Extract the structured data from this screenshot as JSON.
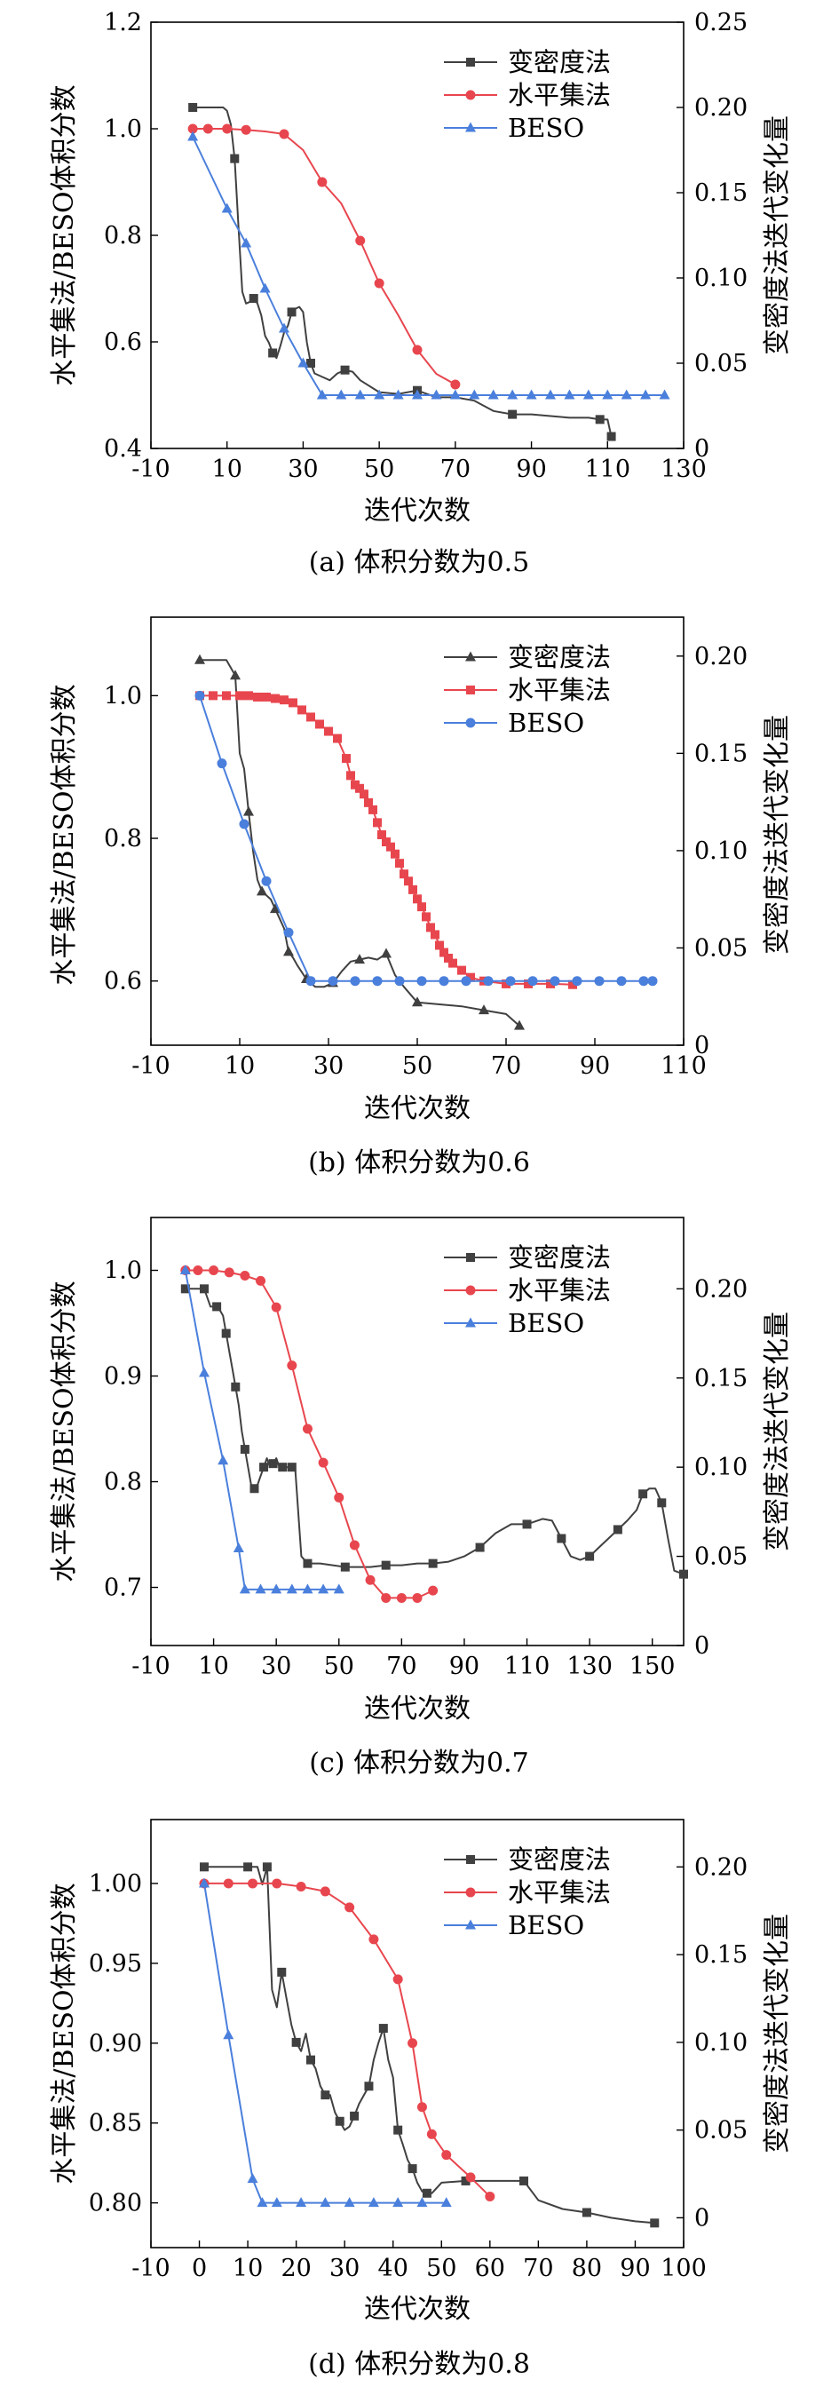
{
  "chart_data": [
    {
      "type": "line",
      "caption": "(a) 体积分数为0.5",
      "xlabel": "迭代次数",
      "ylabel": "水平集法/BESO体积分数",
      "y2label": "变密度法迭代变化量",
      "xlim": [
        -10,
        130
      ],
      "xticks": [
        -10,
        10,
        30,
        50,
        70,
        90,
        110,
        130
      ],
      "ylim": [
        0.4,
        1.2
      ],
      "yticks": [
        0.4,
        0.6,
        0.8,
        1.0,
        1.2
      ],
      "ytick_labels": [
        "0.4",
        "0.6",
        "0.8",
        "1.0",
        "1.2"
      ],
      "y2lim": [
        0,
        0.25
      ],
      "y2ticks": [
        0,
        0.05,
        0.1,
        0.15,
        0.2,
        0.25
      ],
      "y2tick_labels": [
        "0",
        "0.05",
        "0.10",
        "0.15",
        "0.20",
        "0.25"
      ],
      "legend": {
        "position": "top-right",
        "entries": [
          "变密度法",
          "水平集法",
          "BESO"
        ]
      },
      "series": [
        {
          "name": "变密度法",
          "axis": "right",
          "color": "#404040",
          "marker": "square",
          "marker_every": 5,
          "x": [
            1,
            5,
            9,
            10,
            11,
            12,
            13,
            14,
            15,
            16,
            17,
            18,
            19,
            20,
            21,
            22,
            23,
            24,
            25,
            26,
            27,
            28,
            29,
            30,
            31,
            32,
            33,
            35,
            37,
            39,
            41,
            43,
            45,
            50,
            55,
            60,
            65,
            70,
            75,
            80,
            85,
            90,
            95,
            100,
            105,
            108,
            110,
            111
          ],
          "y": [
            0.2,
            0.2,
            0.2,
            0.198,
            0.19,
            0.17,
            0.13,
            0.092,
            0.085,
            0.086,
            0.088,
            0.085,
            0.078,
            0.066,
            0.062,
            0.056,
            0.053,
            0.06,
            0.068,
            0.072,
            0.08,
            0.082,
            0.083,
            0.08,
            0.062,
            0.05,
            0.044,
            0.042,
            0.04,
            0.044,
            0.046,
            0.045,
            0.04,
            0.033,
            0.032,
            0.034,
            0.03,
            0.03,
            0.028,
            0.022,
            0.02,
            0.02,
            0.019,
            0.018,
            0.018,
            0.017,
            0.017,
            0.007
          ]
        },
        {
          "name": "水平集法",
          "axis": "left",
          "color": "#e8464e",
          "marker": "circle",
          "marker_every": 5,
          "x": [
            1,
            5,
            10,
            15,
            20,
            25,
            30,
            35,
            40,
            45,
            50,
            55,
            60,
            65,
            70
          ],
          "y": [
            1.0,
            1.0,
            1.0,
            0.998,
            0.995,
            0.99,
            0.96,
            0.9,
            0.86,
            0.79,
            0.71,
            0.65,
            0.585,
            0.54,
            0.52
          ],
          "marker_x": [
            1,
            5,
            10,
            15,
            25,
            35,
            45,
            50,
            60,
            70
          ]
        },
        {
          "name": "BESO",
          "axis": "left",
          "color": "#4a7fdc",
          "marker": "triangle",
          "x": [
            1,
            10,
            15,
            20,
            25,
            30,
            35,
            40,
            45,
            50,
            55,
            60,
            65,
            70,
            75,
            80,
            85,
            90,
            95,
            100,
            105,
            110,
            115,
            120,
            125
          ],
          "y": [
            0.985,
            0.85,
            0.785,
            0.7,
            0.625,
            0.56,
            0.5,
            0.5,
            0.5,
            0.5,
            0.5,
            0.5,
            0.5,
            0.5,
            0.5,
            0.5,
            0.5,
            0.5,
            0.5,
            0.5,
            0.5,
            0.5,
            0.5,
            0.5,
            0.5
          ]
        }
      ]
    },
    {
      "type": "line",
      "caption": "(b) 体积分数为0.6",
      "xlabel": "迭代次数",
      "ylabel": "水平集法/BESO体积分数",
      "y2label": "变密度法迭代变化量",
      "xlim": [
        -10,
        110
      ],
      "xticks": [
        -10,
        10,
        30,
        50,
        70,
        90,
        110
      ],
      "ylim": [
        0.51,
        1.11
      ],
      "yticks": [
        0.6,
        0.8,
        1.0
      ],
      "ytick_labels": [
        "0.6",
        "0.8",
        "1.0"
      ],
      "y2lim": [
        0,
        0.22
      ],
      "y2ticks": [
        0,
        0.05,
        0.1,
        0.15,
        0.2
      ],
      "y2tick_labels": [
        "0",
        "0.05",
        "0.10",
        "0.15",
        "0.20"
      ],
      "legend": {
        "position": "top-right",
        "entries": [
          "变密度法",
          "水平集法",
          "BESO"
        ]
      },
      "series": [
        {
          "name": "变密度法",
          "axis": "right",
          "color": "#404040",
          "marker": "triangle",
          "marker_every": 3,
          "x": [
            1,
            4,
            7,
            9,
            10,
            11,
            12,
            13,
            14,
            15,
            16,
            17,
            18,
            19,
            20,
            21,
            22,
            23,
            25,
            27,
            29,
            31,
            33,
            35,
            37,
            39,
            41,
            43,
            45,
            47,
            50,
            55,
            60,
            65,
            70,
            73
          ],
          "y": [
            0.198,
            0.198,
            0.198,
            0.19,
            0.15,
            0.142,
            0.12,
            0.1,
            0.085,
            0.079,
            0.077,
            0.075,
            0.07,
            0.065,
            0.06,
            0.048,
            0.045,
            0.041,
            0.034,
            0.03,
            0.03,
            0.032,
            0.038,
            0.043,
            0.044,
            0.045,
            0.044,
            0.047,
            0.036,
            0.03,
            0.022,
            0.021,
            0.02,
            0.018,
            0.016,
            0.01
          ]
        },
        {
          "name": "水平集法",
          "axis": "left",
          "color": "#e8464e",
          "marker": "square",
          "x": [
            1,
            4,
            7,
            10,
            12,
            14,
            16,
            18,
            20,
            22,
            24,
            26,
            28,
            30,
            32,
            34,
            35,
            36,
            37,
            38,
            39,
            40,
            41,
            42,
            43,
            44,
            45,
            46,
            47,
            48,
            49,
            50,
            51,
            52,
            53,
            54,
            55,
            56,
            57,
            58,
            60,
            62,
            65,
            70,
            75,
            80,
            85
          ],
          "y": [
            1.0,
            1.0,
            1.0,
            1.0,
            1.0,
            0.998,
            0.998,
            0.996,
            0.994,
            0.99,
            0.98,
            0.97,
            0.96,
            0.95,
            0.94,
            0.912,
            0.888,
            0.875,
            0.87,
            0.862,
            0.85,
            0.84,
            0.822,
            0.805,
            0.795,
            0.788,
            0.778,
            0.765,
            0.75,
            0.74,
            0.728,
            0.715,
            0.704,
            0.69,
            0.675,
            0.665,
            0.65,
            0.64,
            0.632,
            0.625,
            0.615,
            0.605,
            0.6,
            0.596,
            0.596,
            0.596,
            0.595
          ]
        },
        {
          "name": "BESO",
          "axis": "left",
          "color": "#4a7fdc",
          "marker": "circle",
          "x": [
            1,
            6,
            11,
            16,
            21,
            26,
            31,
            36,
            41,
            46,
            51,
            56,
            61,
            66,
            71,
            76,
            81,
            86,
            91,
            96,
            101,
            103
          ],
          "y": [
            1.0,
            0.905,
            0.82,
            0.74,
            0.668,
            0.6,
            0.6,
            0.6,
            0.6,
            0.6,
            0.6,
            0.6,
            0.6,
            0.6,
            0.6,
            0.6,
            0.6,
            0.6,
            0.6,
            0.6,
            0.6,
            0.6
          ]
        }
      ]
    },
    {
      "type": "line",
      "caption": "(c) 体积分数为0.7",
      "xlabel": "迭代次数",
      "ylabel": "水平集法/BESO体积分数",
      "y2label": "变密度法迭代变化量",
      "xlim": [
        -10,
        160
      ],
      "xticks": [
        -10,
        10,
        30,
        50,
        70,
        90,
        110,
        130,
        150
      ],
      "ylim": [
        0.645,
        1.05
      ],
      "yticks": [
        0.7,
        0.8,
        0.9,
        1.0
      ],
      "ytick_labels": [
        "0.7",
        "0.8",
        "0.9",
        "1.0"
      ],
      "y2lim": [
        0,
        0.24
      ],
      "y2ticks": [
        0,
        0.05,
        0.1,
        0.15,
        0.2
      ],
      "y2tick_labels": [
        "0",
        "0.05",
        "0.10",
        "0.15",
        "0.20"
      ],
      "legend": {
        "position": "top-right",
        "entries": [
          "变密度法",
          "水平集法",
          "BESO"
        ]
      },
      "series": [
        {
          "name": "变密度法",
          "axis": "right",
          "color": "#404040",
          "marker": "square",
          "marker_every": 3,
          "x": [
            1,
            3,
            5,
            7,
            9,
            10,
            11,
            12,
            13,
            14,
            15,
            16,
            17,
            18,
            19,
            20,
            21,
            22,
            23,
            24,
            25,
            26,
            27,
            28,
            29,
            30,
            31,
            32,
            33,
            34,
            35,
            36,
            38,
            40,
            44,
            48,
            52,
            56,
            60,
            65,
            70,
            75,
            80,
            85,
            90,
            95,
            100,
            105,
            110,
            115,
            118,
            121,
            124,
            127,
            130,
            133,
            136,
            139,
            142,
            145,
            147,
            149,
            151,
            153,
            155,
            157,
            160
          ],
          "y": [
            0.2,
            0.2,
            0.2,
            0.2,
            0.19,
            0.19,
            0.19,
            0.188,
            0.185,
            0.175,
            0.165,
            0.155,
            0.145,
            0.135,
            0.12,
            0.11,
            0.1,
            0.09,
            0.088,
            0.09,
            0.095,
            0.1,
            0.105,
            0.1,
            0.102,
            0.105,
            0.1,
            0.1,
            0.1,
            0.1,
            0.1,
            0.1,
            0.05,
            0.046,
            0.046,
            0.045,
            0.044,
            0.044,
            0.044,
            0.045,
            0.045,
            0.046,
            0.046,
            0.047,
            0.05,
            0.055,
            0.063,
            0.068,
            0.068,
            0.071,
            0.07,
            0.06,
            0.05,
            0.048,
            0.05,
            0.055,
            0.06,
            0.065,
            0.07,
            0.076,
            0.085,
            0.088,
            0.088,
            0.08,
            0.06,
            0.042,
            0.04
          ]
        },
        {
          "name": "水平集法",
          "axis": "left",
          "color": "#e8464e",
          "marker": "circle",
          "x": [
            1,
            5,
            10,
            15,
            20,
            25,
            30,
            35,
            40,
            45,
            50,
            55,
            60,
            65,
            70,
            75,
            80
          ],
          "y": [
            1.0,
            1.0,
            1.0,
            0.998,
            0.995,
            0.99,
            0.965,
            0.91,
            0.85,
            0.818,
            0.785,
            0.74,
            0.707,
            0.69,
            0.69,
            0.69,
            0.697
          ]
        },
        {
          "name": "BESO",
          "axis": "left",
          "color": "#4a7fdc",
          "marker": "triangle",
          "x": [
            1,
            7,
            13,
            18,
            20,
            25,
            30,
            35,
            40,
            45,
            50
          ],
          "y": [
            1.0,
            0.903,
            0.82,
            0.737,
            0.698,
            0.698,
            0.698,
            0.698,
            0.698,
            0.698,
            0.698
          ]
        }
      ]
    },
    {
      "type": "line",
      "caption": "(d) 体积分数为0.8",
      "xlabel": "迭代次数",
      "ylabel": "水平集法/BESO体积分数",
      "y2label": "变密度法迭代变化量",
      "xlim": [
        -10,
        100
      ],
      "xticks": [
        -10,
        0,
        10,
        20,
        30,
        40,
        50,
        60,
        70,
        80,
        90,
        100
      ],
      "ylim": [
        0.772,
        1.04
      ],
      "yticks": [
        0.8,
        0.85,
        0.9,
        0.95,
        1.0
      ],
      "ytick_labels": [
        "0.80",
        "0.85",
        "0.90",
        "0.95",
        "1.00"
      ],
      "y2lim": [
        -0.017,
        0.227
      ],
      "y2ticks": [
        0,
        0.05,
        0.1,
        0.15,
        0.2
      ],
      "y2tick_labels": [
        "0",
        "0.05",
        "0.10",
        "0.15",
        "0.20"
      ],
      "legend": {
        "position": "top-right",
        "entries": [
          "变密度法",
          "水平集法",
          "BESO"
        ]
      },
      "series": [
        {
          "name": "变密度法",
          "axis": "right",
          "color": "#404040",
          "marker": "square",
          "marker_every": 3,
          "x": [
            1,
            4,
            7,
            10,
            12,
            13,
            14,
            15,
            16,
            17,
            18,
            19,
            20,
            21,
            22,
            23,
            24,
            25,
            26,
            27,
            28,
            29,
            30,
            31,
            32,
            33,
            34,
            35,
            36,
            37,
            38,
            39,
            40,
            41,
            42,
            43,
            44,
            45,
            46,
            47,
            48,
            50,
            55,
            60,
            65,
            67,
            70,
            75,
            80,
            85,
            90,
            94
          ],
          "y": [
            0.2,
            0.2,
            0.2,
            0.2,
            0.2,
            0.19,
            0.2,
            0.13,
            0.12,
            0.14,
            0.125,
            0.11,
            0.1,
            0.095,
            0.105,
            0.09,
            0.085,
            0.075,
            0.07,
            0.07,
            0.06,
            0.055,
            0.05,
            0.052,
            0.058,
            0.065,
            0.07,
            0.075,
            0.09,
            0.1,
            0.108,
            0.09,
            0.08,
            0.05,
            0.042,
            0.033,
            0.028,
            0.02,
            0.015,
            0.014,
            0.014,
            0.02,
            0.021,
            0.021,
            0.021,
            0.021,
            0.01,
            0.005,
            0.003,
            0.0,
            -0.002,
            -0.003
          ]
        },
        {
          "name": "水平集法",
          "axis": "left",
          "color": "#e8464e",
          "marker": "circle",
          "x": [
            1,
            6,
            11,
            16,
            21,
            26,
            31,
            36,
            41,
            44,
            46,
            48,
            51,
            56,
            60
          ],
          "y": [
            1.0,
            1.0,
            1.0,
            1.0,
            0.998,
            0.995,
            0.985,
            0.965,
            0.94,
            0.9,
            0.86,
            0.843,
            0.83,
            0.816,
            0.804
          ]
        },
        {
          "name": "BESO",
          "axis": "left",
          "color": "#4a7fdc",
          "marker": "triangle",
          "x": [
            1,
            6,
            11,
            13,
            16,
            21,
            26,
            31,
            36,
            41,
            46,
            51
          ],
          "y": [
            1.0,
            0.905,
            0.815,
            0.8,
            0.8,
            0.8,
            0.8,
            0.8,
            0.8,
            0.8,
            0.8,
            0.8
          ]
        }
      ]
    }
  ]
}
